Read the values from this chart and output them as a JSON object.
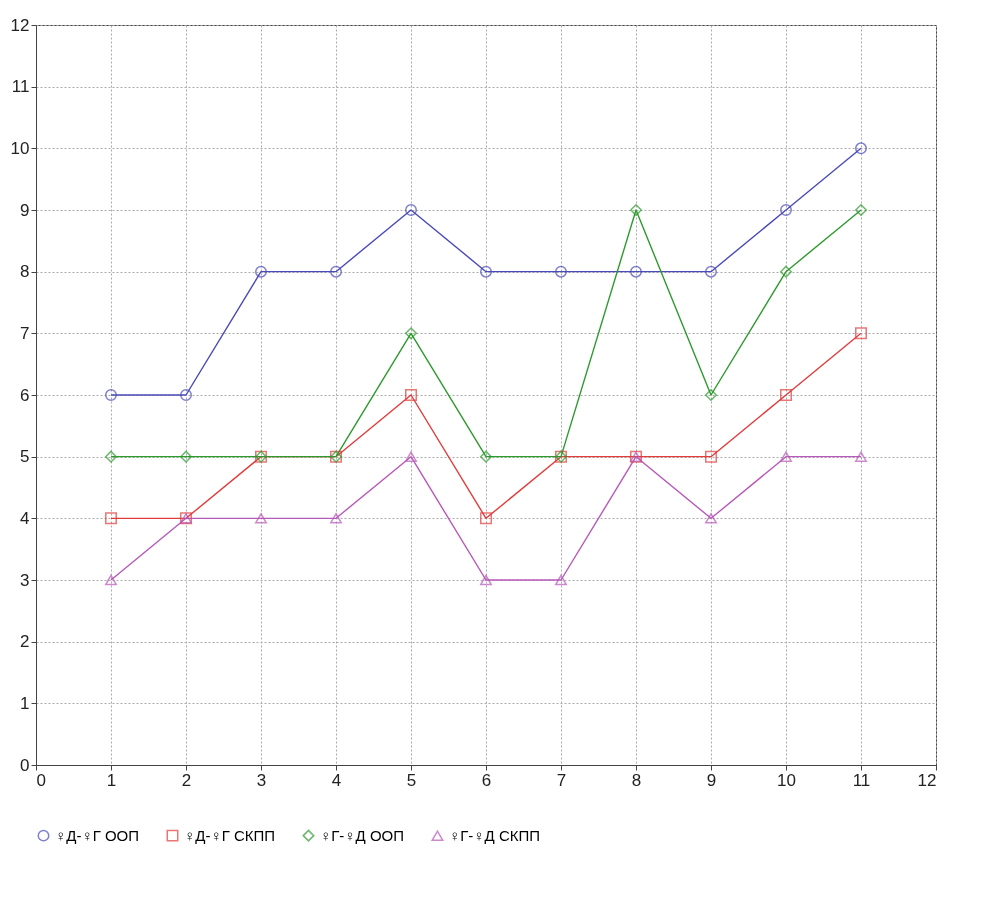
{
  "chart_data": {
    "type": "line",
    "x": [
      1,
      2,
      3,
      4,
      5,
      6,
      7,
      8,
      9,
      10,
      11
    ],
    "series": [
      {
        "name": "♀Д-♀Г ООП",
        "color": "#4a4ab8",
        "marker": "circle",
        "values": [
          6,
          6,
          8,
          8,
          9,
          8,
          8,
          8,
          8,
          9,
          10
        ]
      },
      {
        "name": "♀Д-♀Г СКПП",
        "color": "#e03c3c",
        "marker": "square",
        "values": [
          4,
          4,
          5,
          5,
          6,
          4,
          5,
          5,
          5,
          6,
          7
        ]
      },
      {
        "name": "♀Г-♀Д ООП",
        "color": "#2e9a2e",
        "marker": "diamond",
        "values": [
          5,
          5,
          5,
          5,
          7,
          5,
          5,
          9,
          6,
          8,
          9
        ]
      },
      {
        "name": "♀Г-♀Д СКПП",
        "color": "#b858b8",
        "marker": "triangle",
        "values": [
          3,
          4,
          4,
          4,
          5,
          3,
          3,
          5,
          4,
          5,
          5
        ]
      }
    ],
    "xlim": [
      0,
      12
    ],
    "xticks": [
      0,
      1,
      2,
      3,
      4,
      5,
      6,
      7,
      8,
      9,
      10,
      11,
      12
    ],
    "ylim": [
      0,
      12
    ],
    "yticks": [
      0,
      1,
      2,
      3,
      4,
      5,
      6,
      7,
      8,
      9,
      10,
      11,
      12
    ],
    "grid": true,
    "legend": "bottom",
    "line_style": "solid"
  }
}
